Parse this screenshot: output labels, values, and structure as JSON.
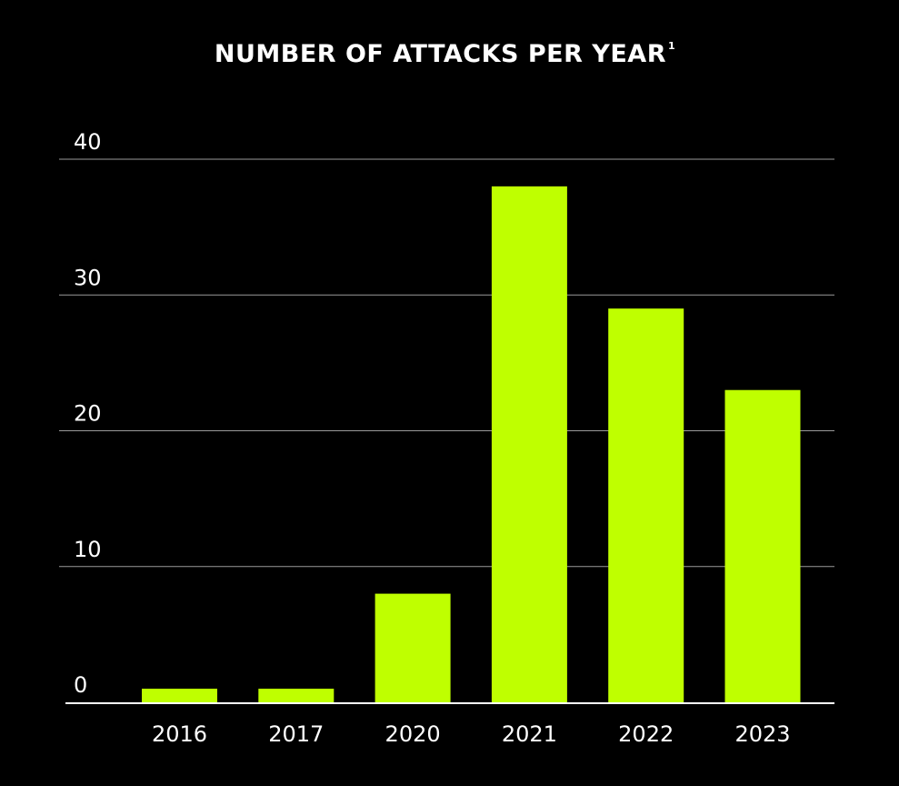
{
  "chart_data": {
    "type": "bar",
    "title": "NUMBER OF ATTACKS PER YEAR",
    "title_superscript": "1",
    "categories": [
      "2016",
      "2017",
      "2020",
      "2021",
      "2022",
      "2023"
    ],
    "values": [
      1,
      1,
      8,
      38,
      29,
      23
    ],
    "yticks": [
      "0",
      "10",
      "20",
      "30",
      "40"
    ],
    "ylim": [
      0,
      40
    ],
    "xlabel": "",
    "ylabel": "",
    "grid": true,
    "colors": {
      "background": "#000000",
      "bar": "#bfff00",
      "text": "#ffffff",
      "grid": "#9a9a9a",
      "axis": "#ffffff"
    }
  }
}
